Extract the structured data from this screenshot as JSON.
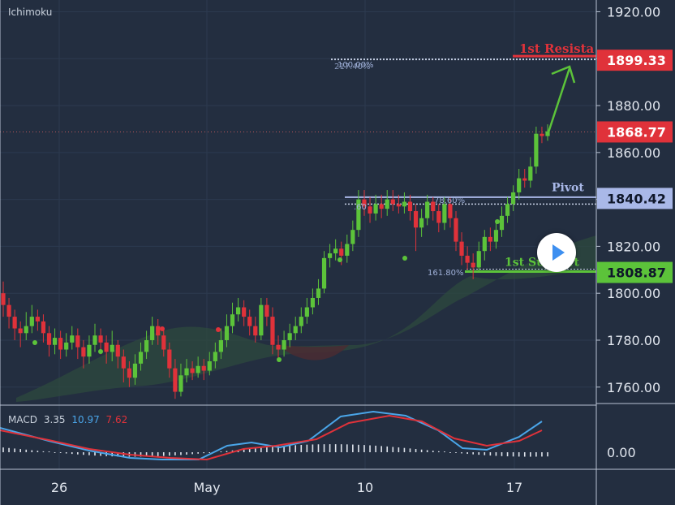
{
  "indicator_title": "Ichimoku",
  "colors": {
    "background": "#232e40",
    "up": "#5cc33a",
    "down": "#e0323a",
    "grid": "#2c3a4f",
    "axis_text": "#e1e6ee",
    "pivot": "#a9b8e8",
    "resistance": "#e0323a",
    "support": "#5cc33a",
    "macd": "#4aa5e8",
    "signal": "#e0323a",
    "cloud": "#2d4a3d"
  },
  "chart_data": {
    "type": "candlestick",
    "y_axis": {
      "ticks": [
        "1920.00",
        "1900.00",
        "1880.00",
        "1860.00",
        "1840.00",
        "1820.00",
        "1800.00",
        "1780.00",
        "1760.00"
      ],
      "range": [
        1753,
        1925
      ]
    },
    "x_axis": {
      "ticks": [
        "26",
        "May",
        "10",
        "17"
      ]
    },
    "levels": [
      {
        "name": "1st Resista",
        "value": "1899.33",
        "color": "#e0323a"
      },
      {
        "name": "",
        "value": "1868.77",
        "color": "#e0323a"
      },
      {
        "name": "Pivot",
        "value": "1840.42",
        "color": "#a9b8e8"
      },
      {
        "name": "1st Support",
        "value": "1808.87",
        "color": "#5cc33a"
      }
    ],
    "annotations": [
      "100.00%",
      "217.40%",
      "78.60%",
      ".60",
      "161.80%"
    ],
    "current_price": 1868.77,
    "candles": [
      [
        1800,
        1795,
        1805,
        1790
      ],
      [
        1795,
        1790,
        1798,
        1785
      ],
      [
        1790,
        1785,
        1793,
        1780
      ],
      [
        1785,
        1783,
        1788,
        1777
      ],
      [
        1783,
        1786,
        1792,
        1780
      ],
      [
        1786,
        1790,
        1795,
        1783
      ],
      [
        1790,
        1788,
        1793,
        1784
      ],
      [
        1788,
        1783,
        1791,
        1779
      ],
      [
        1783,
        1778,
        1786,
        1773
      ],
      [
        1778,
        1781,
        1785,
        1774
      ],
      [
        1781,
        1776,
        1784,
        1772
      ],
      [
        1776,
        1779,
        1783,
        1773
      ],
      [
        1779,
        1782,
        1786,
        1776
      ],
      [
        1782,
        1777,
        1785,
        1772
      ],
      [
        1777,
        1773,
        1780,
        1768
      ],
      [
        1773,
        1778,
        1782,
        1770
      ],
      [
        1778,
        1782,
        1787,
        1775
      ],
      [
        1782,
        1779,
        1785,
        1774
      ],
      [
        1779,
        1775,
        1782,
        1770
      ],
      [
        1775,
        1778,
        1784,
        1771
      ],
      [
        1778,
        1773,
        1780,
        1768
      ],
      [
        1773,
        1768,
        1776,
        1762
      ],
      [
        1768,
        1764,
        1771,
        1760
      ],
      [
        1764,
        1770,
        1774,
        1761
      ],
      [
        1770,
        1775,
        1779,
        1767
      ],
      [
        1775,
        1780,
        1784,
        1772
      ],
      [
        1780,
        1786,
        1790,
        1778
      ],
      [
        1786,
        1782,
        1789,
        1778
      ],
      [
        1782,
        1776,
        1785,
        1773
      ],
      [
        1776,
        1768,
        1779,
        1764
      ],
      [
        1768,
        1758,
        1772,
        1755
      ],
      [
        1758,
        1765,
        1770,
        1756
      ],
      [
        1765,
        1768,
        1772,
        1762
      ],
      [
        1768,
        1766,
        1771,
        1763
      ],
      [
        1766,
        1769,
        1773,
        1764
      ],
      [
        1769,
        1767,
        1772,
        1763
      ],
      [
        1767,
        1771,
        1775,
        1765
      ],
      [
        1771,
        1775,
        1779,
        1768
      ],
      [
        1775,
        1780,
        1785,
        1772
      ],
      [
        1780,
        1786,
        1791,
        1777
      ],
      [
        1786,
        1791,
        1796,
        1783
      ],
      [
        1791,
        1794,
        1798,
        1788
      ],
      [
        1794,
        1790,
        1797,
        1786
      ],
      [
        1790,
        1786,
        1793,
        1782
      ],
      [
        1786,
        1782,
        1790,
        1779
      ],
      [
        1782,
        1795,
        1798,
        1780
      ],
      [
        1795,
        1790,
        1798,
        1786
      ],
      [
        1790,
        1778,
        1794,
        1774
      ],
      [
        1778,
        1776,
        1782,
        1772
      ],
      [
        1776,
        1780,
        1784,
        1773
      ],
      [
        1780,
        1783,
        1787,
        1777
      ],
      [
        1783,
        1786,
        1790,
        1780
      ],
      [
        1786,
        1790,
        1794,
        1783
      ],
      [
        1790,
        1794,
        1798,
        1787
      ],
      [
        1794,
        1798,
        1802,
        1791
      ],
      [
        1798,
        1802,
        1806,
        1795
      ],
      [
        1802,
        1815,
        1818,
        1800
      ],
      [
        1815,
        1817,
        1821,
        1811
      ],
      [
        1817,
        1819,
        1823,
        1814
      ],
      [
        1819,
        1816,
        1822,
        1812
      ],
      [
        1816,
        1821,
        1825,
        1813
      ],
      [
        1821,
        1827,
        1831,
        1818
      ],
      [
        1827,
        1840,
        1844,
        1824
      ],
      [
        1840,
        1837,
        1844,
        1833
      ],
      [
        1837,
        1834,
        1841,
        1830
      ],
      [
        1834,
        1838,
        1842,
        1831
      ],
      [
        1838,
        1836,
        1842,
        1832
      ],
      [
        1836,
        1840,
        1844,
        1833
      ],
      [
        1840,
        1838,
        1844,
        1835
      ],
      [
        1838,
        1837,
        1842,
        1834
      ],
      [
        1837,
        1839,
        1843,
        1834
      ],
      [
        1839,
        1835,
        1842,
        1831
      ],
      [
        1835,
        1828,
        1838,
        1818
      ],
      [
        1828,
        1832,
        1836,
        1824
      ],
      [
        1832,
        1839,
        1842,
        1829
      ],
      [
        1839,
        1835,
        1841,
        1831
      ],
      [
        1835,
        1830,
        1838,
        1826
      ],
      [
        1830,
        1838,
        1841,
        1827
      ],
      [
        1838,
        1832,
        1841,
        1828
      ],
      [
        1832,
        1822,
        1835,
        1818
      ],
      [
        1822,
        1816,
        1826,
        1812
      ],
      [
        1816,
        1813,
        1820,
        1810
      ],
      [
        1813,
        1811,
        1817,
        1806
      ],
      [
        1811,
        1818,
        1822,
        1809
      ],
      [
        1818,
        1824,
        1827,
        1814
      ],
      [
        1824,
        1822,
        1828,
        1818
      ],
      [
        1822,
        1827,
        1831,
        1819
      ],
      [
        1827,
        1833,
        1837,
        1824
      ],
      [
        1833,
        1838,
        1841,
        1830
      ],
      [
        1838,
        1843,
        1846,
        1835
      ],
      [
        1843,
        1849,
        1853,
        1840
      ],
      [
        1849,
        1848,
        1853,
        1845
      ],
      [
        1848,
        1854,
        1858,
        1845
      ],
      [
        1854,
        1868,
        1871,
        1851
      ],
      [
        1868,
        1867,
        1871,
        1864
      ],
      [
        1867,
        1869,
        1872,
        1865
      ]
    ],
    "macd": {
      "label": "MACD",
      "value_1": "3.35",
      "value_2": "10.97",
      "value_3": "7.62",
      "tick": "0.00"
    }
  }
}
